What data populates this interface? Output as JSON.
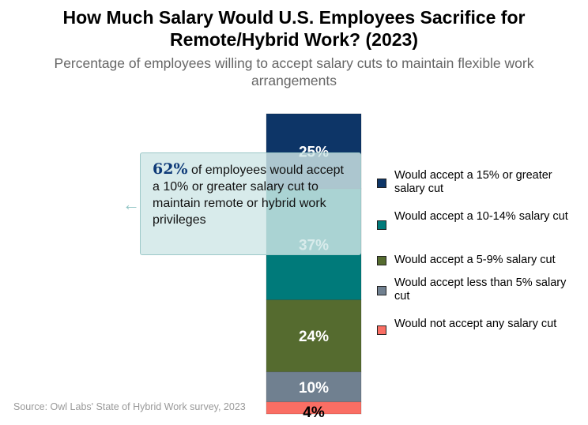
{
  "title": "How Much Salary Would U.S. Employees Sacrifice for Remote/Hybrid Work? (2023)",
  "subtitle": "Percentage of employees willing to accept salary cuts to maintain flexible work arrangements",
  "source": "Source: Owl Labs' State of Hybrid Work survey, 2023",
  "callout": {
    "highlight": "62%",
    "text": " of employees would accept a 10% or greater salary cut to maintain remote or hybrid work privileges",
    "arrow": "←"
  },
  "chart_data": {
    "type": "bar",
    "stacked": true,
    "categories": [
      ""
    ],
    "series": [
      {
        "name": "Would accept a 15% or greater salary cut",
        "values": [
          25
        ],
        "label": "25%",
        "color": "#0d3567"
      },
      {
        "name": "Would accept a 10-14% salary cut",
        "values": [
          37
        ],
        "label": "37%",
        "color": "#007a7a"
      },
      {
        "name": "Would accept a 5-9% salary cut",
        "values": [
          24
        ],
        "label": "24%",
        "color": "#556b2f"
      },
      {
        "name": "Would accept less than 5% salary cut",
        "values": [
          10
        ],
        "label": "10%",
        "color": "#708090"
      },
      {
        "name": "Would not accept any salary cut",
        "values": [
          4
        ],
        "label": "4%",
        "color": "#fa6e64"
      }
    ],
    "legend_position": "right",
    "grid": false
  }
}
